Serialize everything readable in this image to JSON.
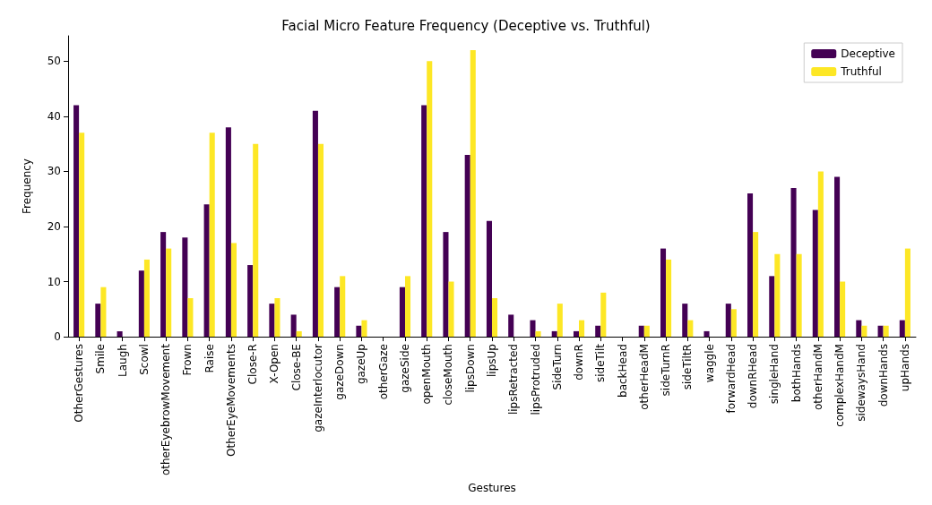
{
  "chart_data": {
    "type": "bar",
    "title": "Facial Micro Feature Frequency (Deceptive vs. Truthful)",
    "xlabel": "Gestures",
    "ylabel": "Frequency",
    "categories": [
      "OtherGestures",
      "Smile",
      "Laugh",
      "Scowl",
      "otherEyebrowMovement",
      "Frown",
      "Raise",
      "OtherEyeMovements",
      "Close-R",
      "X-Open",
      "Close-BE",
      "gazeInterlocutor",
      "gazeDown",
      "gazeUp",
      "otherGaze",
      "gazeSide",
      "openMouth",
      "closeMouth",
      "lipsDown",
      "lipsUp",
      "lipsRetracted",
      "lipsProtruded",
      "SideTurn",
      "downR",
      "sideTilt",
      "backHead",
      "otherHeadM",
      "sideTurnR",
      "sideTiltR",
      "waggle",
      "forwardHead",
      "downRHead",
      "singleHand",
      "bothHands",
      "otherHandM",
      "complexHandM",
      "sidewaysHand",
      "downHands",
      "upHands"
    ],
    "series": [
      {
        "name": "Deceptive",
        "color": "#440154",
        "values": [
          42,
          6,
          1,
          12,
          19,
          18,
          24,
          38,
          13,
          6,
          4,
          41,
          9,
          2,
          0,
          9,
          42,
          19,
          33,
          21,
          4,
          3,
          1,
          1,
          2,
          0,
          2,
          16,
          6,
          1,
          6,
          26,
          11,
          27,
          23,
          29,
          3,
          2,
          3
        ]
      },
      {
        "name": "Truthful",
        "color": "#fde725",
        "values": [
          37,
          9,
          0,
          14,
          16,
          7,
          37,
          17,
          35,
          7,
          1,
          35,
          11,
          3,
          0,
          11,
          50,
          10,
          52,
          7,
          0,
          1,
          6,
          3,
          8,
          0,
          2,
          14,
          3,
          0,
          5,
          19,
          15,
          15,
          30,
          10,
          2,
          2,
          16
        ]
      }
    ],
    "ylim": [
      0,
      54.6
    ],
    "yticks": [
      0,
      10,
      20,
      30,
      40,
      50
    ],
    "grid": false,
    "legend": "top right"
  }
}
